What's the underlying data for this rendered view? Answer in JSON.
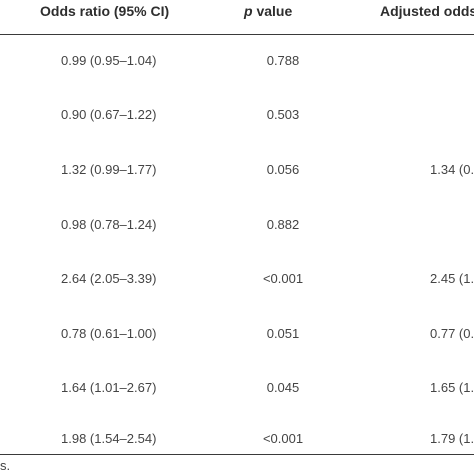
{
  "table": {
    "headers": {
      "odds_ratio": "Odds ratio (95% CI)",
      "p_value_italic": "p",
      "p_value_rest": " value",
      "adjusted": "Adjusted odds"
    },
    "rows": [
      {
        "or": "0.99 (0.95–1.04)",
        "p": "0.788",
        "adj": ""
      },
      {
        "or": "0.90 (0.67–1.22)",
        "p": "0.503",
        "adj": ""
      },
      {
        "or": "1.32 (0.99–1.77)",
        "p": "0.056",
        "adj": "1.34 (0."
      },
      {
        "or": "0.98 (0.78–1.24)",
        "p": "0.882",
        "adj": ""
      },
      {
        "or": "2.64 (2.05–3.39)",
        "p": "<0.001",
        "adj": "2.45 (1."
      },
      {
        "or": "0.78 (0.61–1.00)",
        "p": "0.051",
        "adj": "0.77 (0."
      },
      {
        "or": "1.64 (1.01–2.67)",
        "p": "0.045",
        "adj": "1.65 (1."
      },
      {
        "or": "1.98 (1.54–2.54)",
        "p": "<0.001",
        "adj": "1.79 (1."
      }
    ]
  },
  "footnote": "s."
}
